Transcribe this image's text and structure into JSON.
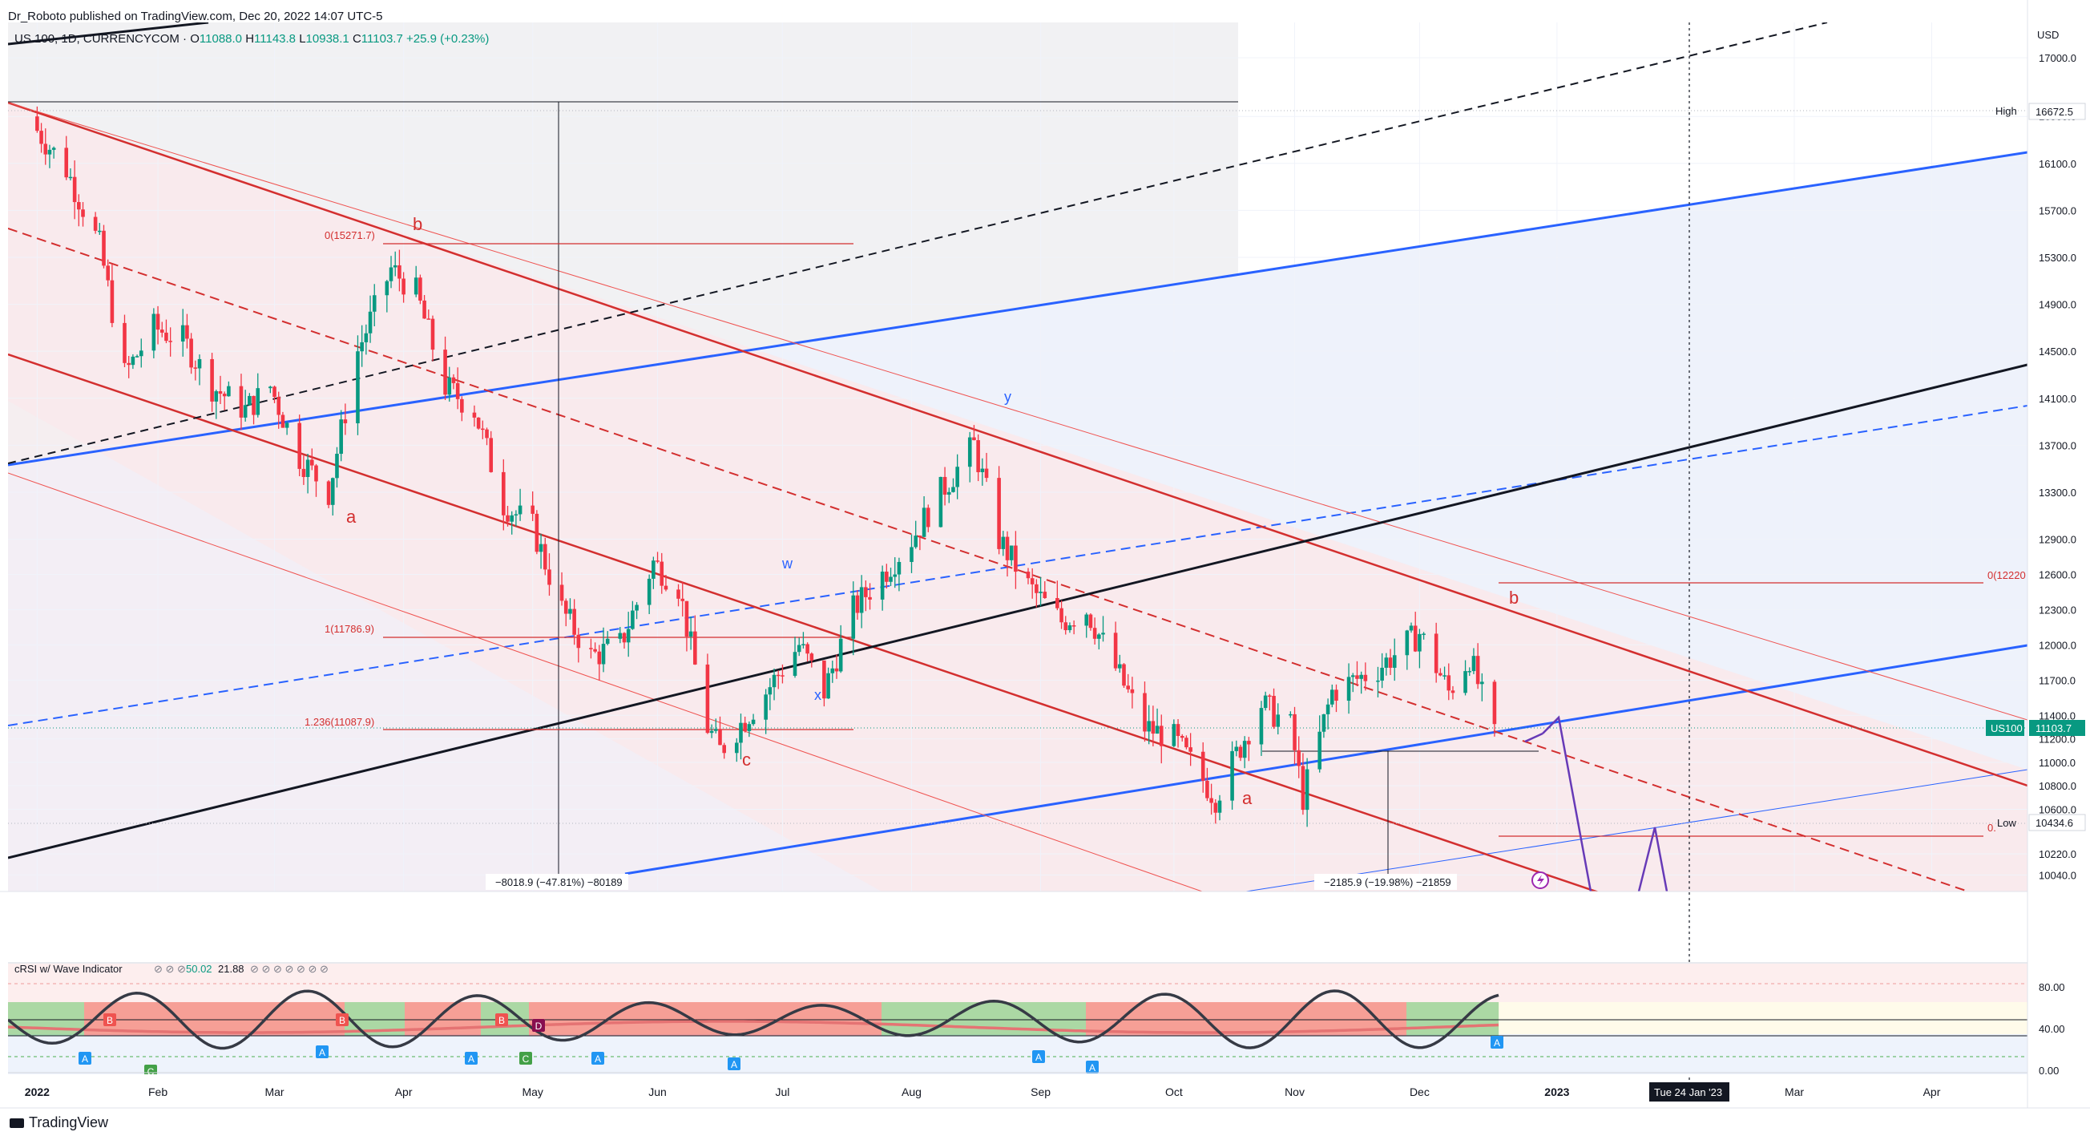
{
  "header": {
    "published": "Dr_Roboto published on TradingView.com, Dec 20, 2022 14:07 UTC-5"
  },
  "symbol": {
    "name": "US 100, 1D, CURRENCYCOM",
    "open_label": "O",
    "open": "11088.0",
    "high_label": "H",
    "high": "11143.8",
    "low_label": "L",
    "low": "10938.1",
    "close_label": "C",
    "close": "11103.7",
    "change": "+25.9 (+0.23%)"
  },
  "price_axis": {
    "currency": "USD",
    "ticks": [
      "17000.0",
      "16500.0",
      "16100.0",
      "15700.0",
      "15300.0",
      "14900.0",
      "14500.0",
      "14100.0",
      "13700.0",
      "13300.0",
      "12900.0",
      "12600.0",
      "12300.0",
      "12000.0",
      "11700.0",
      "11400.0",
      "11200.0",
      "11000.0",
      "10800.0",
      "10600.0",
      "10220.0",
      "10040.0"
    ],
    "high_tag": {
      "label": "High",
      "value": "16672.5"
    },
    "low_tag": {
      "label": "Low",
      "value": "10434.6"
    },
    "last_tag": {
      "label": "US100",
      "value": "11103.7"
    }
  },
  "time_axis": {
    "labels": [
      "2022",
      "Feb",
      "Mar",
      "Apr",
      "May",
      "Jun",
      "Jul",
      "Aug",
      "Sep",
      "Oct",
      "Nov",
      "Dec",
      "2023",
      "Mar",
      "Apr"
    ],
    "crosshair_label": "Tue 24 Jan '23"
  },
  "annotations": {
    "fib_0_left": "0(15271.7)",
    "fib_1": "1(11786.9)",
    "fib_1236": "1.236(11087.9)",
    "fib_0_right": "0(12220",
    "fib_right_low": "0.",
    "measure_left": "−8018.9 (−47.81%) −80189",
    "measure_right": "−2185.9 (−19.98%) −21859",
    "waves": [
      "a",
      "b",
      "c",
      "w",
      "x",
      "y",
      "a",
      "b"
    ]
  },
  "indicator": {
    "title": "cRSI w/ Wave Indicator",
    "value1": "50.02",
    "value2": "21.88",
    "scale": [
      "80.00",
      "40.00",
      "0.00"
    ],
    "markers": [
      "A",
      "B",
      "C",
      "D"
    ]
  },
  "footer": {
    "brand": "TradingView"
  },
  "colors": {
    "bull": "#089981",
    "bear": "#f23645",
    "channel_red": "#d32f2f",
    "channel_blue": "#2962ff",
    "wave_purple": "#673ab7"
  },
  "chart_data": {
    "type": "candlestick",
    "symbol": "US 100",
    "interval": "1D",
    "y_axis": {
      "ylim": [
        9900,
        17300
      ]
    },
    "close_path": [
      {
        "date": "2022-01-03",
        "close": 16380
      },
      {
        "date": "2022-01-10",
        "close": 16050
      },
      {
        "date": "2022-01-18",
        "close": 15400
      },
      {
        "date": "2022-01-24",
        "close": 14300
      },
      {
        "date": "2022-01-31",
        "close": 14700
      },
      {
        "date": "2022-02-07",
        "close": 14600
      },
      {
        "date": "2022-02-14",
        "close": 14200
      },
      {
        "date": "2022-02-22",
        "close": 14000
      },
      {
        "date": "2022-02-28",
        "close": 14200
      },
      {
        "date": "2022-03-07",
        "close": 13600
      },
      {
        "date": "2022-03-14",
        "close": 13300
      },
      {
        "date": "2022-03-21",
        "close": 14500
      },
      {
        "date": "2022-03-29",
        "close": 15200
      },
      {
        "date": "2022-04-04",
        "close": 15000
      },
      {
        "date": "2022-04-11",
        "close": 14200
      },
      {
        "date": "2022-04-18",
        "close": 14000
      },
      {
        "date": "2022-04-25",
        "close": 13200
      },
      {
        "date": "2022-05-02",
        "close": 13000
      },
      {
        "date": "2022-05-09",
        "close": 12300
      },
      {
        "date": "2022-05-16",
        "close": 11900
      },
      {
        "date": "2022-05-23",
        "close": 12000
      },
      {
        "date": "2022-05-31",
        "close": 12700
      },
      {
        "date": "2022-06-06",
        "close": 12500
      },
      {
        "date": "2022-06-13",
        "close": 11300
      },
      {
        "date": "2022-06-16",
        "close": 11100
      },
      {
        "date": "2022-06-27",
        "close": 11600
      },
      {
        "date": "2022-07-05",
        "close": 12000
      },
      {
        "date": "2022-07-11",
        "close": 11600
      },
      {
        "date": "2022-07-18",
        "close": 12300
      },
      {
        "date": "2022-07-25",
        "close": 12600
      },
      {
        "date": "2022-08-01",
        "close": 12900
      },
      {
        "date": "2022-08-08",
        "close": 13300
      },
      {
        "date": "2022-08-16",
        "close": 13700
      },
      {
        "date": "2022-08-22",
        "close": 12900
      },
      {
        "date": "2022-08-29",
        "close": 12500
      },
      {
        "date": "2022-09-06",
        "close": 12200
      },
      {
        "date": "2022-09-12",
        "close": 12300
      },
      {
        "date": "2022-09-19",
        "close": 11800
      },
      {
        "date": "2022-09-26",
        "close": 11300
      },
      {
        "date": "2022-10-03",
        "close": 11200
      },
      {
        "date": "2022-10-13",
        "close": 10700
      },
      {
        "date": "2022-10-24",
        "close": 11500
      },
      {
        "date": "2022-10-31",
        "close": 11300
      },
      {
        "date": "2022-11-03",
        "close": 10700
      },
      {
        "date": "2022-11-10",
        "close": 11600
      },
      {
        "date": "2022-11-21",
        "close": 11800
      },
      {
        "date": "2022-12-01",
        "close": 12100
      },
      {
        "date": "2022-12-08",
        "close": 11600
      },
      {
        "date": "2022-12-13",
        "close": 11900
      },
      {
        "date": "2022-12-20",
        "close": 11103.7
      }
    ]
  }
}
